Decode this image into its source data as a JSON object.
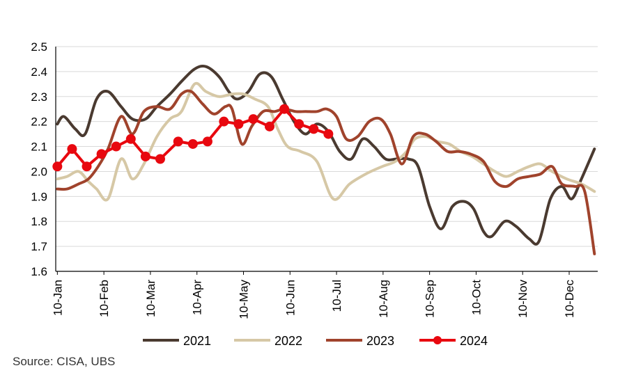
{
  "chart_data": {
    "type": "line",
    "title": "",
    "xlabel": "",
    "ylabel": "",
    "ylim": [
      1.6,
      2.5
    ],
    "y_ticks": [
      "2.5",
      "2.4",
      "2.3",
      "2.2",
      "2.1",
      "2.0",
      "1.9",
      "1.8",
      "1.7",
      "1.6"
    ],
    "x_ticks": [
      "10-Jan",
      "10-Feb",
      "10-Mar",
      "10-Apr",
      "10-May",
      "10-Jun",
      "10-Jul",
      "10-Aug",
      "10-Sep",
      "10-Oct",
      "10-Nov",
      "10-Dec"
    ],
    "grid": "horizontal",
    "legend_position": "bottom",
    "series": [
      {
        "name": "2021",
        "color": "#4a3a30",
        "markers": false,
        "points": [
          [
            1,
            2.19
          ],
          [
            5,
            2.22
          ],
          [
            12,
            2.17
          ],
          [
            18,
            2.15
          ],
          [
            25,
            2.29
          ],
          [
            32,
            2.32
          ],
          [
            40,
            2.26
          ],
          [
            47,
            2.21
          ],
          [
            55,
            2.21
          ],
          [
            62,
            2.26
          ],
          [
            70,
            2.31
          ],
          [
            77,
            2.36
          ],
          [
            85,
            2.41
          ],
          [
            92,
            2.42
          ],
          [
            100,
            2.38
          ],
          [
            106,
            2.32
          ],
          [
            111,
            2.29
          ],
          [
            118,
            2.32
          ],
          [
            125,
            2.39
          ],
          [
            132,
            2.38
          ],
          [
            139,
            2.29
          ],
          [
            146,
            2.2
          ],
          [
            153,
            2.15
          ],
          [
            160,
            2.19
          ],
          [
            167,
            2.16
          ],
          [
            174,
            2.08
          ],
          [
            181,
            2.05
          ],
          [
            188,
            2.13
          ],
          [
            195,
            2.1
          ],
          [
            202,
            2.05
          ],
          [
            209,
            2.05
          ],
          [
            216,
            2.05
          ],
          [
            222,
            2.02
          ],
          [
            229,
            1.86
          ],
          [
            236,
            1.77
          ],
          [
            243,
            1.86
          ],
          [
            250,
            1.88
          ],
          [
            256,
            1.85
          ],
          [
            262,
            1.76
          ],
          [
            267,
            1.74
          ],
          [
            275,
            1.8
          ],
          [
            282,
            1.78
          ],
          [
            290,
            1.73
          ],
          [
            296,
            1.72
          ],
          [
            303,
            1.89
          ],
          [
            310,
            1.94
          ],
          [
            316,
            1.89
          ],
          [
            322,
            1.97
          ],
          [
            330,
            2.09
          ]
        ]
      },
      {
        "name": "2022",
        "color": "#d6c8a6",
        "markers": false,
        "points": [
          [
            1,
            1.97
          ],
          [
            7,
            1.98
          ],
          [
            14,
            2.0
          ],
          [
            20,
            1.96
          ],
          [
            25,
            1.93
          ],
          [
            32,
            1.89
          ],
          [
            40,
            2.05
          ],
          [
            47,
            1.97
          ],
          [
            54,
            2.03
          ],
          [
            62,
            2.14
          ],
          [
            70,
            2.21
          ],
          [
            77,
            2.24
          ],
          [
            85,
            2.35
          ],
          [
            92,
            2.32
          ],
          [
            100,
            2.3
          ],
          [
            108,
            2.31
          ],
          [
            115,
            2.31
          ],
          [
            122,
            2.29
          ],
          [
            130,
            2.26
          ],
          [
            136,
            2.17
          ],
          [
            142,
            2.1
          ],
          [
            150,
            2.08
          ],
          [
            160,
            2.04
          ],
          [
            170,
            1.89
          ],
          [
            180,
            1.95
          ],
          [
            190,
            1.99
          ],
          [
            200,
            2.02
          ],
          [
            208,
            2.04
          ],
          [
            215,
            2.08
          ],
          [
            220,
            2.13
          ],
          [
            227,
            2.14
          ],
          [
            234,
            2.12
          ],
          [
            241,
            2.11
          ],
          [
            248,
            2.08
          ],
          [
            255,
            2.06
          ],
          [
            262,
            2.03
          ],
          [
            269,
            2.0
          ],
          [
            276,
            1.98
          ],
          [
            283,
            2.0
          ],
          [
            290,
            2.02
          ],
          [
            297,
            2.03
          ],
          [
            304,
            2.0
          ],
          [
            313,
            1.97
          ],
          [
            322,
            1.95
          ],
          [
            330,
            1.92
          ]
        ]
      },
      {
        "name": "2023",
        "color": "#a0432c",
        "markers": false,
        "points": [
          [
            1,
            1.93
          ],
          [
            7,
            1.93
          ],
          [
            14,
            1.95
          ],
          [
            20,
            1.97
          ],
          [
            26,
            2.02
          ],
          [
            32,
            2.09
          ],
          [
            40,
            2.22
          ],
          [
            47,
            2.15
          ],
          [
            54,
            2.24
          ],
          [
            62,
            2.26
          ],
          [
            70,
            2.25
          ],
          [
            77,
            2.31
          ],
          [
            83,
            2.32
          ],
          [
            90,
            2.27
          ],
          [
            97,
            2.23
          ],
          [
            104,
            2.26
          ],
          [
            108,
            2.25
          ],
          [
            114,
            2.11
          ],
          [
            120,
            2.18
          ],
          [
            127,
            2.24
          ],
          [
            134,
            2.24
          ],
          [
            140,
            2.25
          ],
          [
            147,
            2.24
          ],
          [
            153,
            2.24
          ],
          [
            160,
            2.24
          ],
          [
            166,
            2.25
          ],
          [
            172,
            2.22
          ],
          [
            178,
            2.13
          ],
          [
            185,
            2.14
          ],
          [
            192,
            2.2
          ],
          [
            199,
            2.21
          ],
          [
            205,
            2.15
          ],
          [
            212,
            2.03
          ],
          [
            219,
            2.14
          ],
          [
            226,
            2.15
          ],
          [
            233,
            2.12
          ],
          [
            240,
            2.08
          ],
          [
            247,
            2.08
          ],
          [
            254,
            2.07
          ],
          [
            262,
            2.04
          ],
          [
            269,
            1.96
          ],
          [
            276,
            1.94
          ],
          [
            283,
            1.97
          ],
          [
            290,
            1.98
          ],
          [
            297,
            1.99
          ],
          [
            304,
            2.02
          ],
          [
            310,
            1.95
          ],
          [
            318,
            1.94
          ],
          [
            324,
            1.92
          ],
          [
            330,
            1.67
          ]
        ]
      },
      {
        "name": "2024",
        "color": "#e8080f",
        "markers": true,
        "points": [
          [
            1,
            2.02
          ],
          [
            10,
            2.09
          ],
          [
            19,
            2.02
          ],
          [
            28,
            2.07
          ],
          [
            37,
            2.1
          ],
          [
            46,
            2.13
          ],
          [
            55,
            2.06
          ],
          [
            64,
            2.05
          ],
          [
            75,
            2.12
          ],
          [
            84,
            2.11
          ],
          [
            93,
            2.12
          ],
          [
            103,
            2.2
          ],
          [
            112,
            2.19
          ],
          [
            121,
            2.21
          ],
          [
            131,
            2.18
          ],
          [
            140,
            2.25
          ],
          [
            149,
            2.19
          ],
          [
            158,
            2.17
          ],
          [
            167,
            2.15
          ]
        ]
      }
    ]
  },
  "legend": {
    "items": [
      "2021",
      "2022",
      "2023",
      "2024"
    ]
  },
  "source": "Source: CISA, UBS"
}
